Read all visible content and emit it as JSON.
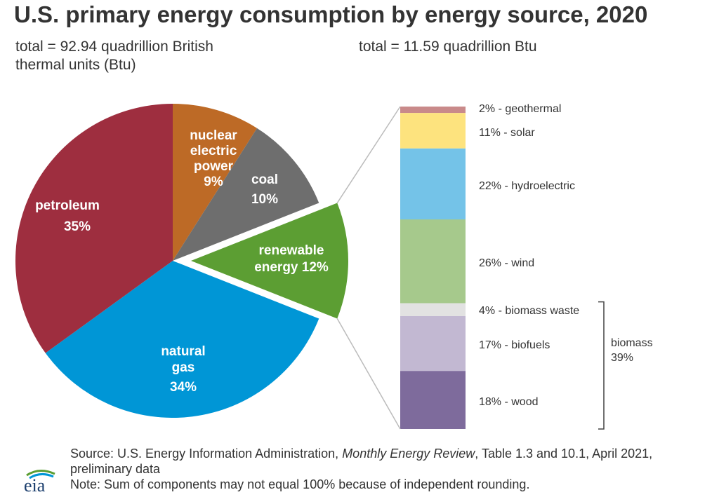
{
  "title": "U.S. primary energy consumption by energy source, 2020",
  "subtitle_left": "total = 92.94 quadrillion British thermal units (Btu)",
  "subtitle_right": "total = 11.59 quadrillion Btu",
  "chart_data": [
    {
      "type": "pie",
      "slices": [
        {
          "label": "petroleum",
          "value": 35,
          "value_label": "35%",
          "color": "#9e2e3f"
        },
        {
          "label": "natural gas",
          "value": 34,
          "value_label": "34%",
          "color": "#0096d6"
        },
        {
          "label": "renewable energy",
          "value": 12,
          "value_label": "12%",
          "color": "#5c9e33",
          "exploded": true
        },
        {
          "label": "coal",
          "value": 10,
          "value_label": "10%",
          "color": "#6e6e6e"
        },
        {
          "label": "nuclear electric power",
          "value": 9,
          "value_label": "9%",
          "color": "#bd6a26"
        }
      ]
    },
    {
      "type": "bar",
      "stacked": true,
      "segments": [
        {
          "label": "geothermal",
          "value": 2,
          "text": "2% - geothermal",
          "color": "#c98a8a"
        },
        {
          "label": "solar",
          "value": 11,
          "text": "11% - solar",
          "color": "#fde37e"
        },
        {
          "label": "hydroelectric",
          "value": 22,
          "text": "22% - hydroelectric",
          "color": "#74c3e8"
        },
        {
          "label": "wind",
          "value": 26,
          "text": "26% - wind",
          "color": "#a6c98c"
        },
        {
          "label": "biomass waste",
          "value": 4,
          "text": "4% - biomass waste",
          "color": "#e2e2e2"
        },
        {
          "label": "biofuels",
          "value": 17,
          "text": "17% - biofuels",
          "color": "#c2b8d2"
        },
        {
          "label": "wood",
          "value": 18,
          "text": "18% - wood",
          "color": "#7e6b9c"
        }
      ],
      "group": {
        "label": "biomass",
        "value_label": "39%"
      }
    }
  ],
  "footer": {
    "source_prefix": "Source: U.S. Energy Information Administration, ",
    "source_italic": "Monthly Energy Review",
    "source_suffix": ", Table 1.3 and 10.1, April 2021, preliminary data",
    "note": "Note: Sum of components may not equal 100% because of independent rounding."
  },
  "logo_text": "eia"
}
